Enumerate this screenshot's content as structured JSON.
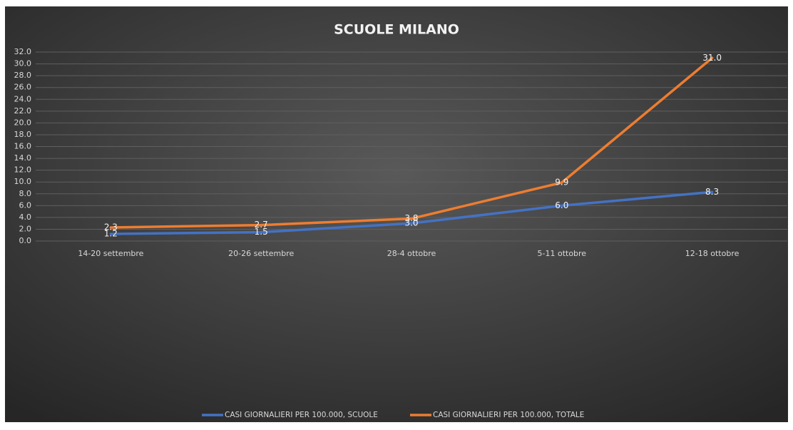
{
  "chart_data": {
    "type": "line",
    "title": "SCUOLE MILANO",
    "categories": [
      "14-20 settembre",
      "20-26 settembre",
      "28-4 ottobre",
      "5-11 ottobre",
      "12-18 ottobre"
    ],
    "series": [
      {
        "name": "CASI GIORNALIERI PER 100.000, SCUOLE",
        "color": "#4472c4",
        "values": [
          1.2,
          1.5,
          3.0,
          6.0,
          8.3
        ],
        "value_labels": [
          "1.2",
          "1.5",
          "3.0",
          "6.0",
          "8.3"
        ]
      },
      {
        "name": "CASI GIORNALIERI PER 100.000, TOTALE",
        "color": "#ed7d31",
        "values": [
          2.3,
          2.7,
          3.8,
          9.9,
          31.0
        ],
        "value_labels": [
          "2.3",
          "2.7",
          "3.8",
          "9.9",
          "31.0"
        ]
      }
    ],
    "ylim": [
      0,
      32
    ],
    "yticks": [
      {
        "value": 0,
        "label": "0.0"
      },
      {
        "value": 2,
        "label": "2.0"
      },
      {
        "value": 4,
        "label": "4.0"
      },
      {
        "value": 6,
        "label": "6.0"
      },
      {
        "value": 8,
        "label": "8.0"
      },
      {
        "value": 10,
        "label": "10.0"
      },
      {
        "value": 12,
        "label": "12.0"
      },
      {
        "value": 14,
        "label": "14.0"
      },
      {
        "value": 16,
        "label": "16.0"
      },
      {
        "value": 18,
        "label": "18.0"
      },
      {
        "value": 20,
        "label": "20.0"
      },
      {
        "value": 22,
        "label": "22.0"
      },
      {
        "value": 24,
        "label": "24.0"
      },
      {
        "value": 26,
        "label": "26.0"
      },
      {
        "value": 28,
        "label": "28.0"
      },
      {
        "value": 30,
        "label": "30.0"
      },
      {
        "value": 32,
        "label": "32.0"
      }
    ],
    "grid": true,
    "legend": "bottom"
  }
}
